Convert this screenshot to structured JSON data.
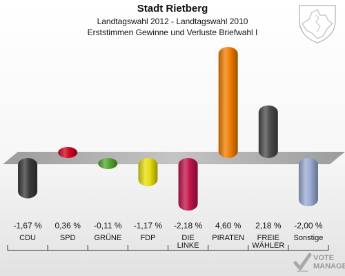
{
  "header": {
    "title": "Stadt Rietberg",
    "subtitle": "Landtagswahl 2012 - Landtagswahl 2010",
    "subtitle2": "Erststimmen Gewinne und Verluste Briefwahl I"
  },
  "watermark": {
    "line1": "VOTE",
    "line2": "MANAGER"
  },
  "chart_data": {
    "type": "bar",
    "categories": [
      "CDU",
      "SPD",
      "GRÜNE",
      "FDP",
      "DIE LINKE",
      "PIRATEN",
      "FREIE WÄHLER",
      "Sonstige"
    ],
    "category_lines": [
      [
        "CDU"
      ],
      [
        "SPD"
      ],
      [
        "GRÜNE"
      ],
      [
        "FDP"
      ],
      [
        "DIE",
        "LINKE"
      ],
      [
        "PIRATEN"
      ],
      [
        "FREIE",
        "WÄHLER"
      ],
      [
        "Sonstige"
      ]
    ],
    "values": [
      -1.67,
      0.36,
      -0.11,
      -1.17,
      -2.18,
      4.6,
      2.18,
      -2.0
    ],
    "value_labels": [
      "-1,67 %",
      "0,36 %",
      "-0,11 %",
      "-1,17 %",
      "-2,18 %",
      "4,60 %",
      "2,18 %",
      "-2,00 %"
    ],
    "colors": [
      "#3a3a3a",
      "#d0021b",
      "#52a52c",
      "#e6dc0e",
      "#c0134a",
      "#f07d00",
      "#4a4a4a",
      "#9aaad2"
    ],
    "ylim": [
      -2.3,
      4.7
    ]
  }
}
